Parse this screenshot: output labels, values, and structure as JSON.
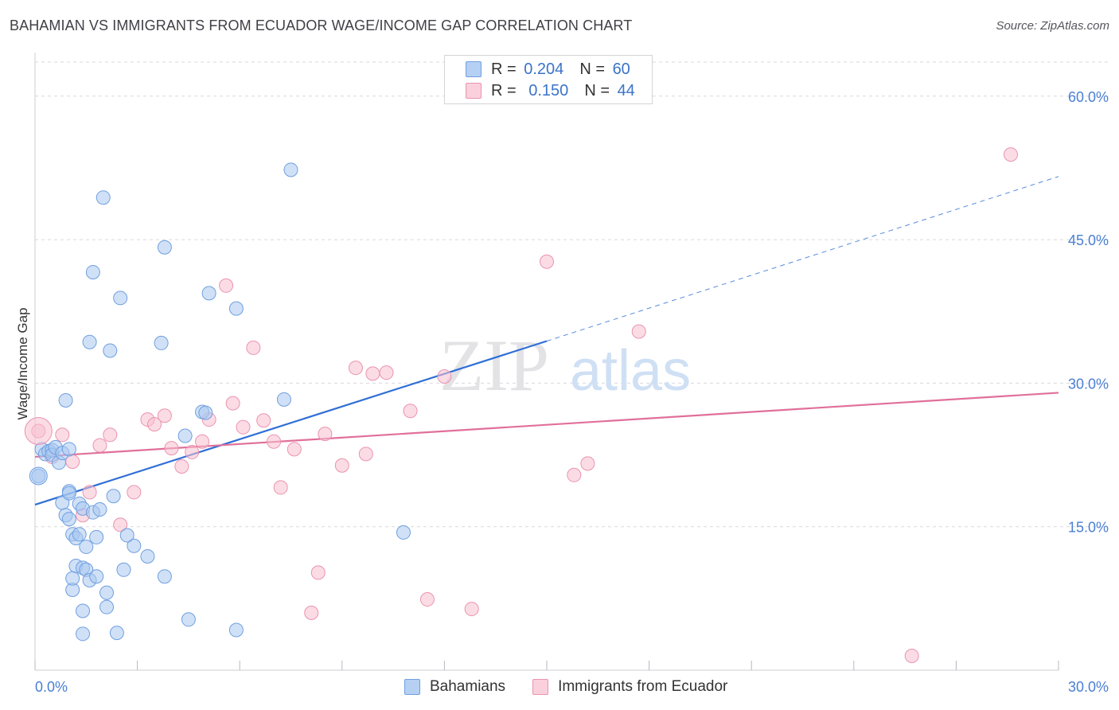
{
  "title": "BAHAMIAN VS IMMIGRANTS FROM ECUADOR WAGE/INCOME GAP CORRELATION CHART",
  "source": "Source: ZipAtlas.com",
  "watermark": {
    "zip": "ZIP",
    "atlas": "atlas"
  },
  "legend": {
    "rows": [
      {
        "r_label": "R =",
        "r_value": "0.204",
        "n_label": "N =",
        "n_value": "60"
      },
      {
        "r_label": "R =",
        "r_value": "0.150",
        "n_label": "N =",
        "n_value": "44"
      }
    ]
  },
  "bottom_legend": [
    "Bahamians",
    "Immigrants from Ecuador"
  ],
  "colors": {
    "blue_fill": "#a9c8f0",
    "blue_stroke": "#6f9fe0",
    "blue_line": "#2f6fd6",
    "pink_fill": "#f7c0d0",
    "pink_stroke": "#eb93b0",
    "pink_line": "#e0709a",
    "grid": "#d9d9de",
    "tick_text": "#4a7fd4"
  },
  "chart_data": {
    "type": "scatter",
    "title": "BAHAMIAN VS IMMIGRANTS FROM ECUADOR WAGE/INCOME GAP CORRELATION CHART",
    "ylabel": "Wage/Income Gap",
    "xlabel": "",
    "xlim": [
      0,
      30
    ],
    "ylim": [
      0,
      60
    ],
    "x_tick_labels": [
      "0.0%",
      "30.0%"
    ],
    "y_tick_labels": [
      "15.0%",
      "30.0%",
      "45.0%",
      "60.0%"
    ],
    "y_ticks": [
      15,
      30,
      45,
      60
    ],
    "grid": true,
    "series": [
      {
        "name": "Bahamians",
        "r": 0.204,
        "n": 60,
        "points": [
          [
            0.1,
            20.3
          ],
          [
            0.2,
            23.1
          ],
          [
            0.3,
            22.6
          ],
          [
            0.4,
            22.9
          ],
          [
            0.5,
            23.0
          ],
          [
            0.5,
            22.5
          ],
          [
            0.6,
            23.3
          ],
          [
            0.7,
            21.7
          ],
          [
            0.8,
            22.7
          ],
          [
            0.8,
            17.5
          ],
          [
            0.9,
            16.2
          ],
          [
            0.9,
            28.2
          ],
          [
            1.0,
            18.7
          ],
          [
            1.0,
            15.8
          ],
          [
            1.0,
            18.5
          ],
          [
            1.0,
            23.1
          ],
          [
            1.1,
            14.2
          ],
          [
            1.1,
            8.4
          ],
          [
            1.2,
            13.8
          ],
          [
            1.2,
            10.9
          ],
          [
            1.3,
            17.4
          ],
          [
            1.3,
            14.2
          ],
          [
            1.4,
            16.9
          ],
          [
            1.4,
            10.7
          ],
          [
            1.4,
            6.2
          ],
          [
            1.4,
            3.8
          ],
          [
            1.5,
            10.5
          ],
          [
            1.5,
            12.9
          ],
          [
            1.6,
            34.3
          ],
          [
            1.6,
            9.4
          ],
          [
            1.7,
            16.5
          ],
          [
            1.7,
            41.6
          ],
          [
            1.8,
            9.8
          ],
          [
            1.8,
            13.9
          ],
          [
            1.9,
            16.8
          ],
          [
            2.0,
            49.4
          ],
          [
            2.1,
            8.1
          ],
          [
            2.1,
            6.6
          ],
          [
            2.2,
            33.4
          ],
          [
            2.3,
            18.2
          ],
          [
            2.4,
            3.9
          ],
          [
            2.5,
            38.9
          ],
          [
            2.6,
            10.5
          ],
          [
            2.9,
            13.0
          ],
          [
            3.3,
            11.9
          ],
          [
            3.7,
            34.2
          ],
          [
            3.8,
            9.8
          ],
          [
            3.8,
            44.2
          ],
          [
            4.4,
            24.5
          ],
          [
            4.5,
            5.3
          ],
          [
            4.9,
            27.0
          ],
          [
            5.0,
            26.9
          ],
          [
            5.1,
            39.4
          ],
          [
            5.9,
            4.2
          ],
          [
            5.9,
            37.8
          ],
          [
            7.3,
            28.3
          ],
          [
            7.5,
            52.3
          ],
          [
            10.8,
            14.4
          ],
          [
            1.1,
            9.6
          ],
          [
            2.7,
            14.1
          ]
        ]
      },
      {
        "name": "Immigrants from Ecuador",
        "r": 0.15,
        "n": 44,
        "points": [
          [
            0.1,
            25.0
          ],
          [
            0.5,
            22.3
          ],
          [
            0.8,
            24.6
          ],
          [
            1.1,
            21.8
          ],
          [
            1.4,
            16.2
          ],
          [
            1.6,
            18.6
          ],
          [
            1.9,
            23.5
          ],
          [
            2.2,
            24.6
          ],
          [
            2.5,
            15.2
          ],
          [
            2.9,
            18.6
          ],
          [
            3.3,
            26.2
          ],
          [
            3.5,
            25.7
          ],
          [
            3.8,
            26.6
          ],
          [
            4.0,
            23.2
          ],
          [
            4.3,
            21.3
          ],
          [
            4.6,
            22.8
          ],
          [
            4.9,
            23.9
          ],
          [
            5.1,
            26.2
          ],
          [
            5.6,
            40.2
          ],
          [
            5.8,
            27.9
          ],
          [
            6.1,
            25.4
          ],
          [
            6.4,
            33.7
          ],
          [
            6.7,
            26.1
          ],
          [
            7.0,
            23.9
          ],
          [
            7.2,
            19.1
          ],
          [
            7.6,
            23.1
          ],
          [
            8.1,
            6.0
          ],
          [
            8.3,
            10.2
          ],
          [
            8.5,
            24.7
          ],
          [
            9.0,
            21.4
          ],
          [
            9.4,
            31.6
          ],
          [
            9.7,
            22.6
          ],
          [
            9.9,
            31.0
          ],
          [
            10.3,
            31.1
          ],
          [
            11.0,
            27.1
          ],
          [
            11.5,
            7.4
          ],
          [
            12.0,
            30.7
          ],
          [
            12.8,
            6.4
          ],
          [
            15.0,
            42.7
          ],
          [
            15.8,
            20.4
          ],
          [
            16.2,
            21.6
          ],
          [
            17.7,
            35.4
          ],
          [
            25.7,
            1.5
          ],
          [
            28.6,
            53.9
          ]
        ]
      }
    ],
    "trendlines": [
      {
        "series": "Bahamians",
        "from": [
          0,
          17.3
        ],
        "to": [
          15.0,
          34.4
        ],
        "dashed_to": [
          30,
          51.6
        ]
      },
      {
        "series": "Immigrants from Ecuador",
        "from": [
          0,
          22.3
        ],
        "to": [
          30,
          29.0
        ]
      }
    ]
  }
}
